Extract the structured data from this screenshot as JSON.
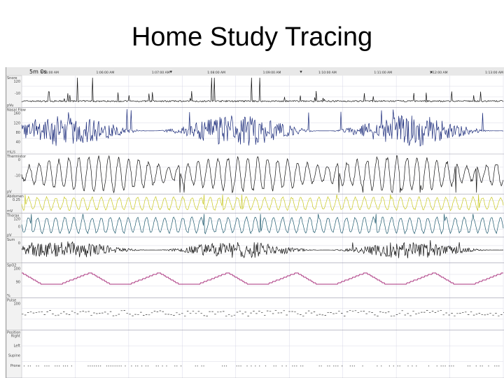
{
  "slide": {
    "title": "Home Study Tracing"
  },
  "chart_data": {
    "type": "line",
    "title": "Home Study Tracing",
    "epoch_label": "5m 0s",
    "time_labels": [
      "1:05:00 AM",
      "1:06:00 AM",
      "1:07:00 AM",
      "1:08:00 AM",
      "1:09:00 AM",
      "1:10:00 AM",
      "1:11:00 AM",
      "1:12:00 AM",
      "1:13:00 AM"
    ],
    "channels": [
      {
        "id": "snore",
        "label": "Snore",
        "ticks": [
          "120",
          "-10"
        ],
        "unit": "pVu",
        "color": "#111111",
        "style": "spiky"
      },
      {
        "id": "nasal",
        "label": "Nasal Flow",
        "ticks": [
          "160",
          "120",
          "80",
          "40"
        ],
        "unit": "mL/s",
        "color": "#1a2a7a",
        "style": "dense"
      },
      {
        "id": "thermistor",
        "label": "Thermistor",
        "ticks": [
          "0",
          "-10"
        ],
        "unit": "pV",
        "color": "#111111",
        "style": "flow"
      },
      {
        "id": "abdomen",
        "label": "Abdomen",
        "ticks": [
          "0.25"
        ],
        "unit": "mV",
        "color": "#c8c820",
        "style": "effort"
      },
      {
        "id": "thorax",
        "label": "Thorax",
        "ticks": [
          "120",
          "0"
        ],
        "unit": "pV",
        "color": "#1f5a6e",
        "style": "effort"
      },
      {
        "id": "sum",
        "label": "Sum",
        "ticks": [
          "0"
        ],
        "unit": "",
        "color": "#111111",
        "style": "dense"
      },
      {
        "id": "spo2",
        "label": "SpO2",
        "ticks": [
          "100",
          "90"
        ],
        "unit": "%",
        "color": "#a8317c",
        "style": "spo2"
      },
      {
        "id": "pulse",
        "label": "Pulse",
        "ticks": [
          "100"
        ],
        "unit": "",
        "color": "#333333",
        "style": "pulse"
      },
      {
        "id": "position",
        "label": "Position",
        "ticks": [
          "Right",
          "Left",
          "Supine",
          "Prone"
        ],
        "unit": "",
        "color": "#111111",
        "style": "position"
      }
    ],
    "event_markers": [
      "▼",
      "▼",
      "◀"
    ],
    "grid": true
  }
}
